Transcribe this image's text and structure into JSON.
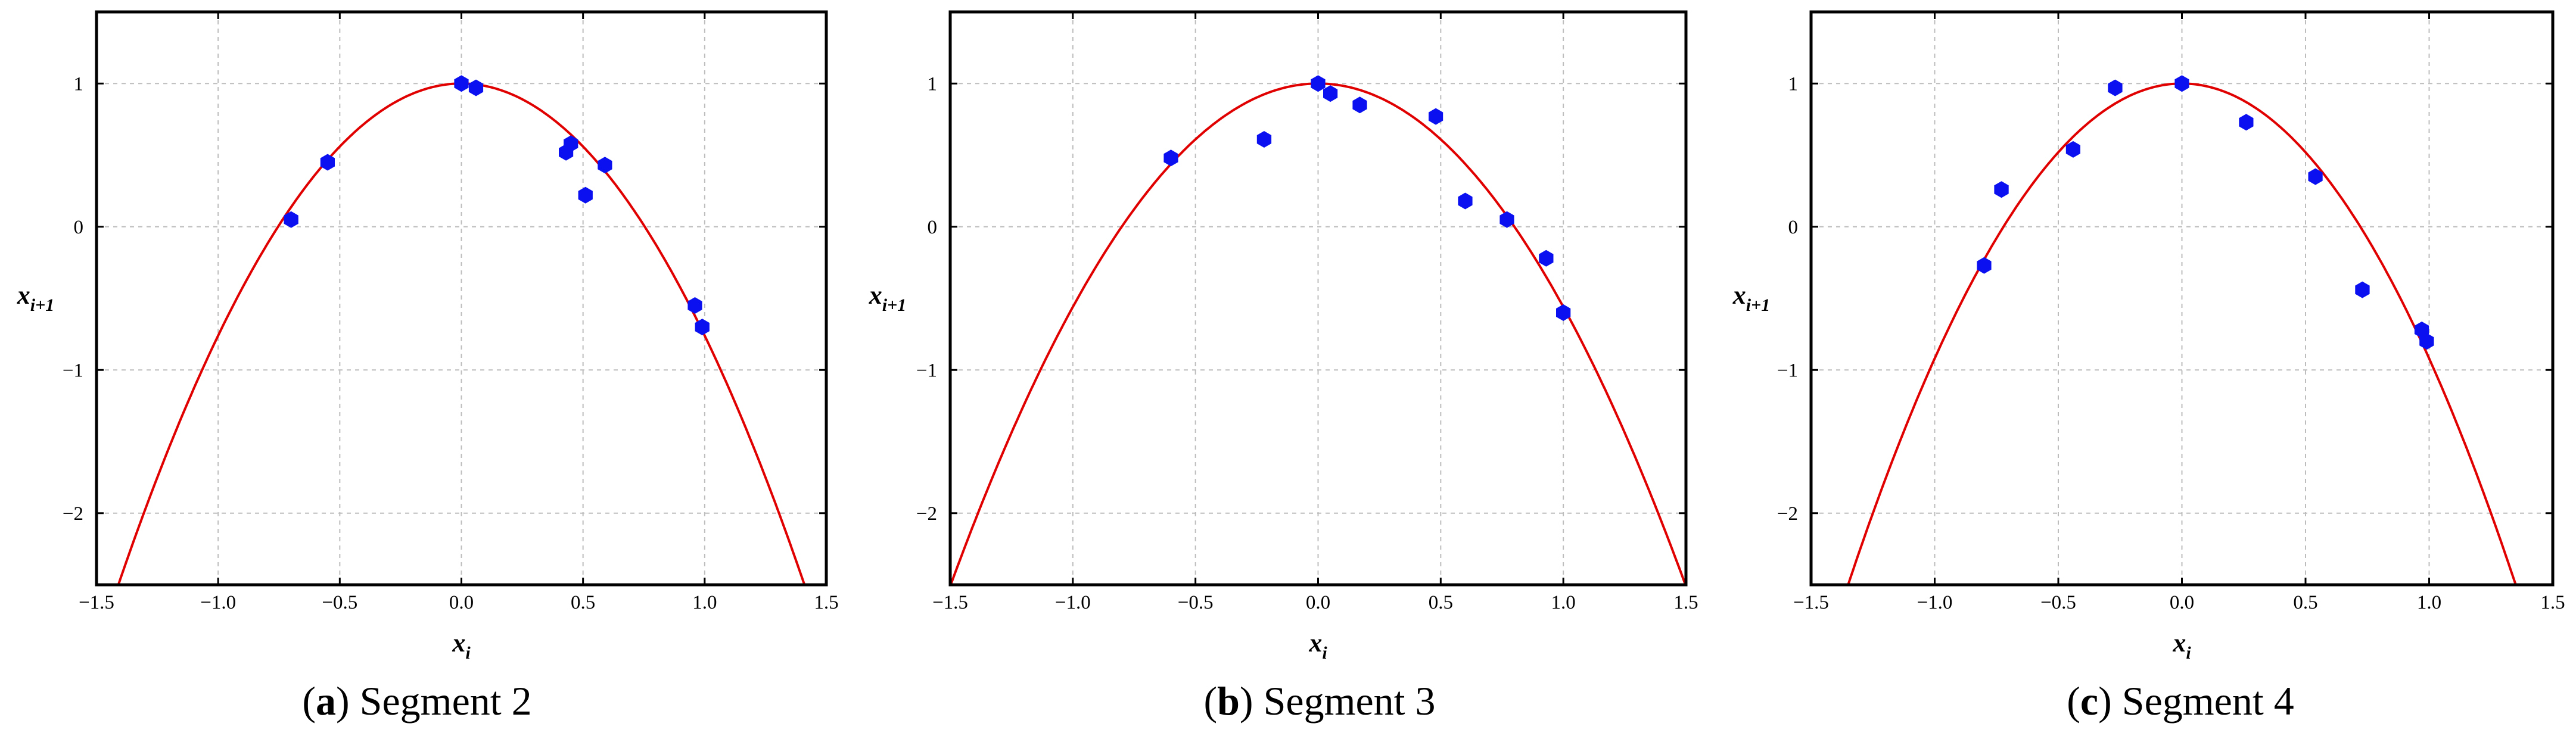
{
  "chart_data": [
    {
      "type": "scatter",
      "caption": {
        "letter": "a",
        "text": "Segment 2"
      },
      "xlabel": "x",
      "xlabel_sub": "i",
      "ylabel": "x",
      "ylabel_sub": "i+1",
      "xlim": [
        -1.5,
        1.5
      ],
      "ylim": [
        -2.5,
        1.5
      ],
      "xticks": [
        -1.5,
        -1.0,
        -0.5,
        0.0,
        0.5,
        1.0,
        1.5
      ],
      "xtick_labels": [
        "−1.5",
        "−1.0",
        "−0.5",
        "0.0",
        "0.5",
        "1.0",
        "1.5"
      ],
      "yticks": [
        1,
        0,
        -1,
        -2
      ],
      "ytick_labels": [
        "1",
        "0",
        "−1",
        "−2"
      ],
      "grid": true,
      "curve": {
        "type": "parabola",
        "a": 1.76,
        "b": 1.0,
        "color": "#e00000"
      },
      "points": [
        {
          "x": -0.7,
          "y": 0.05
        },
        {
          "x": -0.55,
          "y": 0.45
        },
        {
          "x": 0.0,
          "y": 1.0
        },
        {
          "x": 0.06,
          "y": 0.97
        },
        {
          "x": 0.43,
          "y": 0.52
        },
        {
          "x": 0.45,
          "y": 0.58
        },
        {
          "x": 0.51,
          "y": 0.22
        },
        {
          "x": 0.59,
          "y": 0.43
        },
        {
          "x": 0.96,
          "y": -0.55
        },
        {
          "x": 0.99,
          "y": -0.7
        }
      ],
      "point_color": "#0a10f0"
    },
    {
      "type": "scatter",
      "caption": {
        "letter": "b",
        "text": "Segment 3"
      },
      "xlabel": "x",
      "xlabel_sub": "i",
      "ylabel": "x",
      "ylabel_sub": "i+1",
      "xlim": [
        -1.5,
        1.5
      ],
      "ylim": [
        -2.5,
        1.5
      ],
      "xticks": [
        -1.5,
        -1.0,
        -0.5,
        0.0,
        0.5,
        1.0,
        1.5
      ],
      "xtick_labels": [
        "−1.5",
        "−1.0",
        "−0.5",
        "0.0",
        "0.5",
        "1.0",
        "1.5"
      ],
      "yticks": [
        1,
        0,
        -1,
        -2
      ],
      "ytick_labels": [
        "1",
        "0",
        "−1",
        "−2"
      ],
      "grid": true,
      "curve": {
        "type": "parabola",
        "a": 1.56,
        "b": 1.0,
        "color": "#e00000"
      },
      "points": [
        {
          "x": -0.6,
          "y": 0.48
        },
        {
          "x": -0.22,
          "y": 0.61
        },
        {
          "x": 0.0,
          "y": 1.0
        },
        {
          "x": 0.05,
          "y": 0.93
        },
        {
          "x": 0.17,
          "y": 0.85
        },
        {
          "x": 0.48,
          "y": 0.77
        },
        {
          "x": 0.6,
          "y": 0.18
        },
        {
          "x": 0.77,
          "y": 0.05
        },
        {
          "x": 0.93,
          "y": -0.22
        },
        {
          "x": 1.0,
          "y": -0.6
        }
      ],
      "point_color": "#0a10f0"
    },
    {
      "type": "scatter",
      "caption": {
        "letter": "c",
        "text": "Segment 4"
      },
      "xlabel": "x",
      "xlabel_sub": "i",
      "ylabel": "x",
      "ylabel_sub": "i+1",
      "xlim": [
        -1.5,
        1.5
      ],
      "ylim": [
        -2.5,
        1.5
      ],
      "xticks": [
        -1.5,
        -1.0,
        -0.5,
        0.0,
        0.5,
        1.0,
        1.5
      ],
      "xtick_labels": [
        "−1.5",
        "−1.0",
        "−0.5",
        "0.0",
        "0.5",
        "1.0",
        "1.5"
      ],
      "yticks": [
        1,
        0,
        -1,
        -2
      ],
      "ytick_labels": [
        "1",
        "0",
        "−1",
        "−2"
      ],
      "grid": true,
      "curve": {
        "type": "parabola",
        "a": 1.92,
        "b": 1.0,
        "color": "#e00000"
      },
      "points": [
        {
          "x": -0.8,
          "y": -0.27
        },
        {
          "x": -0.73,
          "y": 0.26
        },
        {
          "x": -0.44,
          "y": 0.54
        },
        {
          "x": -0.27,
          "y": 0.97
        },
        {
          "x": 0.0,
          "y": 1.0
        },
        {
          "x": 0.26,
          "y": 0.73
        },
        {
          "x": 0.54,
          "y": 0.35
        },
        {
          "x": 0.73,
          "y": -0.44
        },
        {
          "x": 0.97,
          "y": -0.72
        },
        {
          "x": 0.99,
          "y": -0.8
        }
      ],
      "point_color": "#0a10f0"
    }
  ]
}
